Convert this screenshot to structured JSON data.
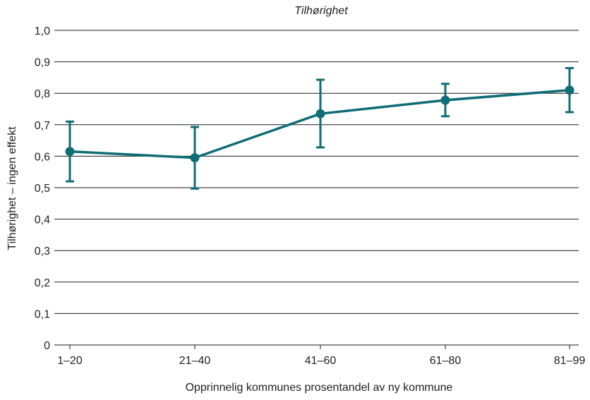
{
  "chart_data": {
    "type": "line",
    "title": "Tilhørighet",
    "xlabel": "Opprinnelig kommunes prosentandel av ny kommune",
    "ylabel": "Tilhørighet – ingen effekt",
    "categories": [
      "1–20",
      "21–40",
      "41–60",
      "61–80",
      "81–99"
    ],
    "y_ticks": [
      "0",
      "0,1",
      "0,2",
      "0,3",
      "0,4",
      "0,5",
      "0,6",
      "0,7",
      "0,8",
      "0,9",
      "1,0"
    ],
    "ylim": [
      0,
      1.0
    ],
    "grid": true,
    "series": [
      {
        "values": [
          0.615,
          0.595,
          0.735,
          0.778,
          0.81
        ],
        "error_low": [
          0.52,
          0.497,
          0.628,
          0.727,
          0.74
        ],
        "error_high": [
          0.71,
          0.693,
          0.843,
          0.83,
          0.88
        ],
        "color": "#0e6d76"
      }
    ]
  }
}
